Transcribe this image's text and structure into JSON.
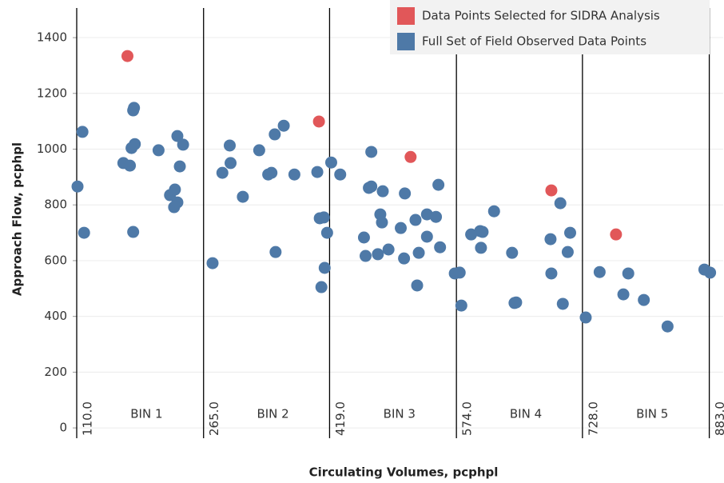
{
  "chart_data": {
    "type": "scatter",
    "xlabel": "Circulating Volumes, pcphpl",
    "ylabel": "Approach Flow, pcphpl",
    "xlim": [
      110,
      900
    ],
    "ylim": [
      -37,
      1535
    ],
    "yticks": [
      0,
      200,
      400,
      600,
      800,
      1000,
      1200,
      1400
    ],
    "xticks": [
      {
        "value": 110,
        "label": "110.0"
      },
      {
        "value": 265,
        "label": "265.0"
      },
      {
        "value": 419,
        "label": "419.0"
      },
      {
        "value": 574,
        "label": "574.0"
      },
      {
        "value": 728,
        "label": "728.0"
      },
      {
        "value": 883,
        "label": "883.0"
      }
    ],
    "bin_labels": [
      "BIN 1",
      "BIN 2",
      "BIN 3",
      "BIN 4",
      "BIN 5"
    ],
    "grid": true,
    "legend": "top-right",
    "series": [
      {
        "name": "Data Points Selected for SIDRA Analysis",
        "color": "#e15759",
        "x": [
          172,
          406,
          518,
          690,
          769
        ],
        "y": [
          1334,
          1099,
          972,
          852,
          694
        ]
      },
      {
        "name": "Full Set of Field Observed Data Points",
        "color": "#4e79a7",
        "x": [
          111,
          117,
          119,
          167,
          175,
          177,
          179,
          180,
          181,
          179,
          210,
          224,
          229,
          230,
          233,
          233,
          236,
          240,
          276,
          288,
          297,
          298,
          313,
          333,
          344,
          348,
          352,
          353,
          363,
          376,
          404,
          407,
          409,
          412,
          413,
          416,
          421,
          432,
          461,
          463,
          467,
          470,
          470,
          478,
          484,
          481,
          483,
          491,
          506,
          510,
          511,
          524,
          526,
          528,
          538,
          538,
          549,
          552,
          554,
          572,
          578,
          580,
          592,
          603,
          606,
          604,
          620,
          642,
          645,
          647,
          689,
          690,
          701,
          704,
          710,
          713,
          732,
          749,
          778,
          784,
          803,
          832,
          877,
          884
        ],
        "y": [
          866,
          1062,
          700,
          950,
          941,
          1004,
          1139,
          1148,
          1018,
          703,
          996,
          835,
          792,
          855,
          809,
          1047,
          938,
          1016,
          591,
          915,
          1013,
          950,
          829,
          996,
          909,
          915,
          1053,
          631,
          1084,
          909,
          918,
          752,
          505,
          755,
          574,
          700,
          952,
          909,
          683,
          617,
          861,
          866,
          990,
          623,
          849,
          766,
          737,
          640,
          717,
          608,
          841,
          746,
          511,
          628,
          686,
          766,
          757,
          872,
          648,
          554,
          557,
          439,
          694,
          706,
          703,
          646,
          777,
          628,
          448,
          450,
          677,
          554,
          806,
          445,
          631,
          700,
          396,
          559,
          479,
          554,
          459,
          364,
          568,
          557
        ]
      }
    ]
  }
}
